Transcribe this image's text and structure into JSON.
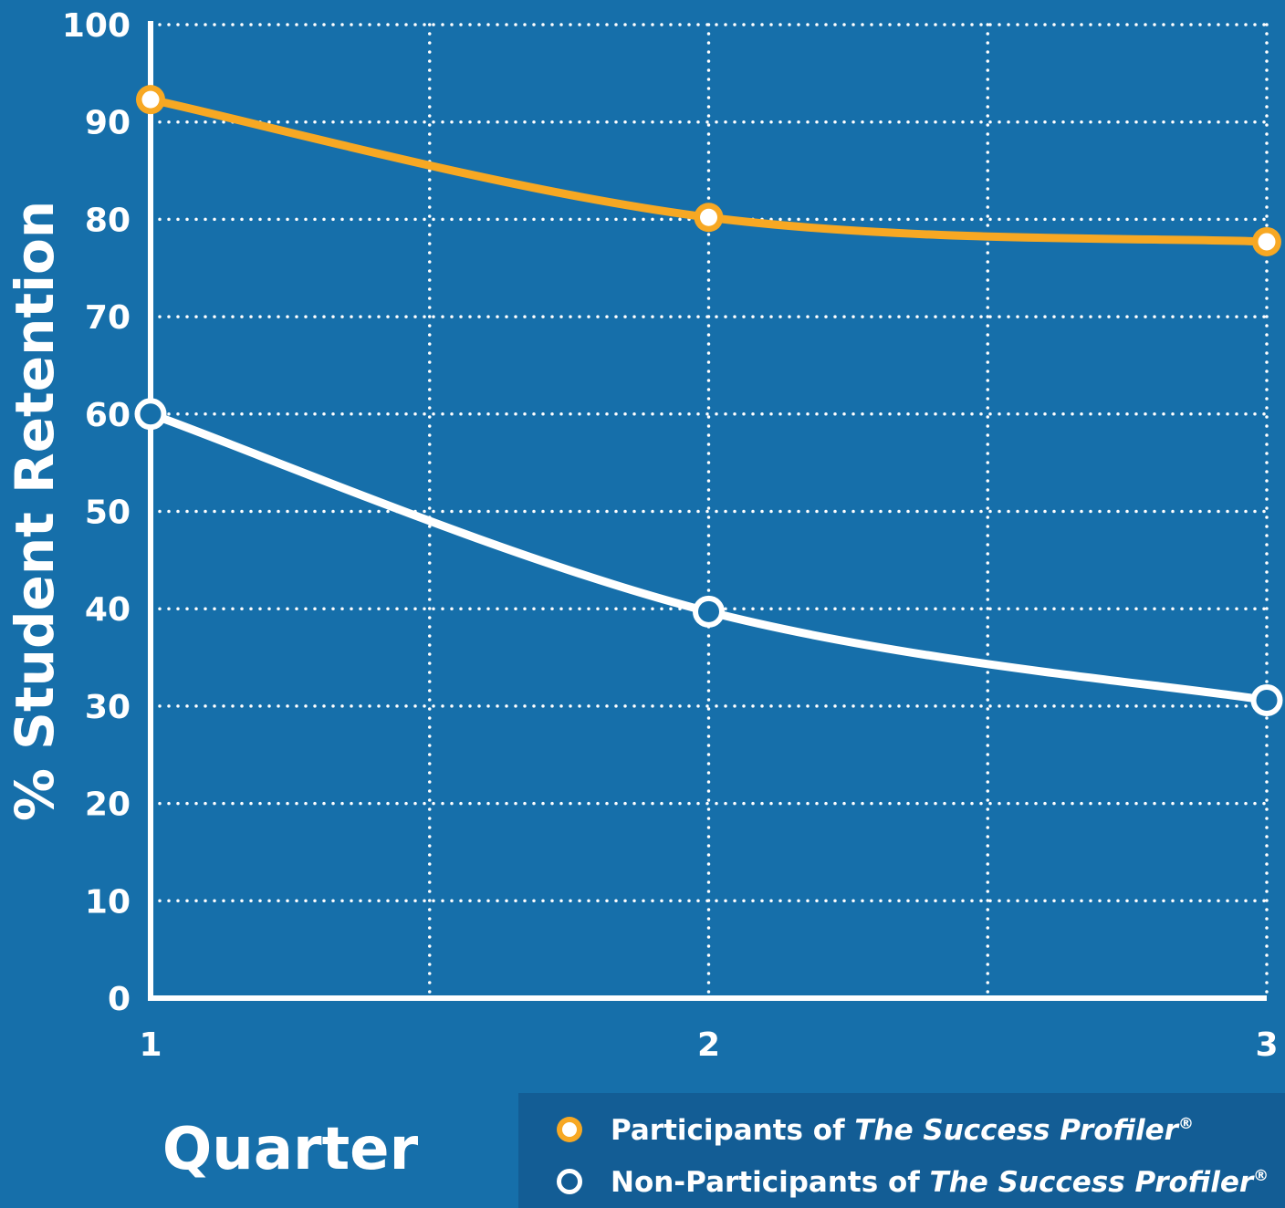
{
  "chart_data": {
    "type": "line",
    "x": [
      1,
      2,
      3
    ],
    "x_tick_labels": [
      "1",
      "2",
      "3"
    ],
    "xlabel": "Quarter",
    "ylabel": "% Student Retention",
    "ylim": [
      0,
      100
    ],
    "y_ticks": [
      0,
      10,
      20,
      30,
      40,
      50,
      60,
      70,
      80,
      90,
      100
    ],
    "grid": true,
    "legend_position": "bottom-right",
    "series": [
      {
        "name": "Participants of The Success Profiler®",
        "name_parts": {
          "prefix": "Participants of ",
          "italic": "The Success Profiler",
          "sup": "®"
        },
        "values": [
          92.3,
          80.2,
          77.7
        ],
        "color": "#f7a823",
        "marker": "filled"
      },
      {
        "name": "Non-Participants of The Success Profiler®",
        "name_parts": {
          "prefix": "Non-Participants of ",
          "italic": "The Success Profiler",
          "sup": "®"
        },
        "values": [
          60,
          39.7,
          30.6
        ],
        "color": "#ffffff",
        "marker": "hollow"
      }
    ],
    "colors": {
      "background": "#166faa",
      "legend_background": "#135d95",
      "axis": "#ffffff",
      "grid": "#ffffff"
    }
  }
}
